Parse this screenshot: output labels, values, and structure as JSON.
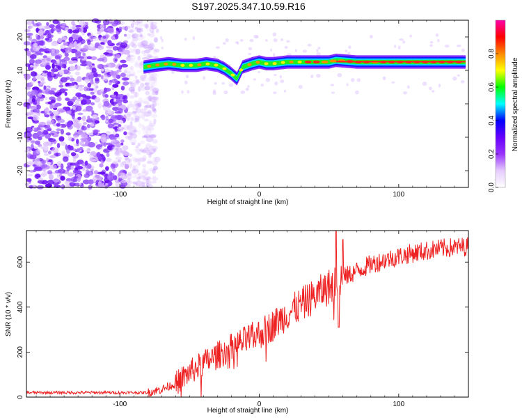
{
  "title": "S197.2025.347.10.59.R16",
  "chart_data": [
    {
      "type": "heatmap",
      "xlabel": "Height of straight line (km)",
      "ylabel": "Frequency (Hz)",
      "xlim": [
        -167,
        150
      ],
      "ylim": [
        -25,
        25
      ],
      "x_ticks": [
        -100,
        0,
        100
      ],
      "y_ticks": [
        -20,
        -10,
        0,
        10,
        20
      ],
      "colorbar": {
        "label": "Normalized spectral amplitude",
        "range": [
          0,
          1
        ],
        "ticks": [
          "0.0",
          "0.2",
          "0.4",
          "0.6",
          "0.8"
        ],
        "colors": [
          "#ffffff",
          "#e6ccff",
          "#9933ff",
          "#6600ff",
          "#0000ff",
          "#00ffff",
          "#00ff00",
          "#ffff00",
          "#ff8800",
          "#ff0000",
          "#ff00aa"
        ]
      },
      "ridge": {
        "x": [
          -83,
          -75,
          -65,
          -55,
          -45,
          -38,
          -30,
          -25,
          -20,
          -16,
          -12,
          -5,
          0,
          5,
          10,
          20,
          30,
          40,
          50,
          55,
          70,
          90,
          110,
          130,
          148
        ],
        "freq": [
          11,
          11.5,
          12,
          11.5,
          11.5,
          12,
          11.5,
          10.5,
          9,
          7.5,
          11,
          12,
          12.5,
          12,
          12,
          12.5,
          12.5,
          12.5,
          12.5,
          13,
          12.5,
          12.5,
          12.5,
          12.5,
          12.5
        ],
        "max_amplitude_x_range": [
          30,
          148
        ]
      },
      "noise_region_x": [
        -167,
        -85
      ]
    },
    {
      "type": "line",
      "xlabel": "Height of straight line (km)",
      "ylabel": "SNR (10 * v/v)",
      "xlim": [
        -167,
        150
      ],
      "ylim": [
        0,
        740
      ],
      "x_ticks": [
        -100,
        0,
        100
      ],
      "y_ticks": [
        0,
        200,
        400,
        600
      ],
      "series_color": "#ee2222",
      "trend": {
        "x": [
          -167,
          -120,
          -80,
          -70,
          -60,
          -50,
          -40,
          -30,
          -20,
          -10,
          0,
          10,
          20,
          30,
          40,
          50,
          60,
          70,
          80,
          90,
          100,
          110,
          120,
          130,
          140,
          150
        ],
        "y": [
          20,
          20,
          20,
          35,
          60,
          110,
          150,
          185,
          220,
          250,
          280,
          320,
          370,
          410,
          450,
          490,
          530,
          560,
          590,
          610,
          625,
          640,
          650,
          660,
          665,
          670
        ]
      },
      "spikes": [
        {
          "x": 55,
          "y": 740
        },
        {
          "x": 57,
          "y": 310
        },
        {
          "x": 60,
          "y": 700
        }
      ]
    }
  ]
}
